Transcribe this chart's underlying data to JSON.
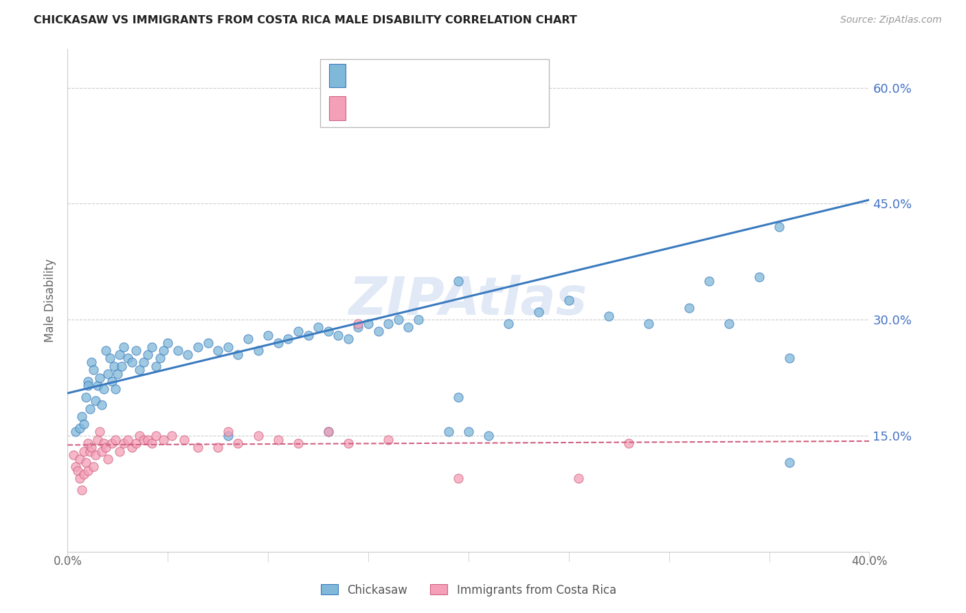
{
  "title": "CHICKASAW VS IMMIGRANTS FROM COSTA RICA MALE DISABILITY CORRELATION CHART",
  "source": "Source: ZipAtlas.com",
  "ylabel": "Male Disability",
  "watermark": "ZIPAtlas",
  "xmin": 0.0,
  "xmax": 0.4,
  "ymin": 0.0,
  "ymax": 0.65,
  "yticks": [
    0.0,
    0.15,
    0.3,
    0.45,
    0.6
  ],
  "xtick_vals": [
    0.0,
    0.05,
    0.1,
    0.15,
    0.2,
    0.25,
    0.3,
    0.35,
    0.4
  ],
  "xtick_labels": [
    "0.0%",
    "",
    "",
    "",
    "",
    "",
    "",
    "",
    "40.0%"
  ],
  "ytick_labels_right": [
    "",
    "15.0%",
    "30.0%",
    "45.0%",
    "60.0%"
  ],
  "color_blue": "#7fb8d8",
  "color_pink": "#f4a0b8",
  "color_blue_line": "#3a7abf",
  "color_pink_line": "#d06080",
  "blue_line_x0": 0.0,
  "blue_line_y0": 0.205,
  "blue_line_x1": 0.4,
  "blue_line_y1": 0.455,
  "pink_line_x0": 0.0,
  "pink_line_y0": 0.138,
  "pink_line_x1": 0.4,
  "pink_line_y1": 0.143,
  "chick_x": [
    0.004,
    0.006,
    0.007,
    0.008,
    0.009,
    0.01,
    0.01,
    0.011,
    0.012,
    0.013,
    0.014,
    0.015,
    0.016,
    0.017,
    0.018,
    0.019,
    0.02,
    0.021,
    0.022,
    0.023,
    0.024,
    0.025,
    0.026,
    0.027,
    0.028,
    0.03,
    0.032,
    0.034,
    0.036,
    0.038,
    0.04,
    0.042,
    0.044,
    0.046,
    0.048,
    0.05,
    0.055,
    0.06,
    0.065,
    0.07,
    0.075,
    0.08,
    0.085,
    0.09,
    0.095,
    0.1,
    0.105,
    0.11,
    0.115,
    0.12,
    0.125,
    0.13,
    0.135,
    0.14,
    0.145,
    0.15,
    0.155,
    0.16,
    0.165,
    0.17,
    0.175,
    0.19,
    0.2,
    0.21,
    0.22,
    0.235,
    0.25,
    0.27,
    0.29,
    0.31,
    0.32,
    0.33,
    0.345,
    0.355,
    0.36,
    0.36,
    0.195,
    0.195,
    0.13,
    0.08
  ],
  "chick_y": [
    0.155,
    0.16,
    0.175,
    0.165,
    0.2,
    0.22,
    0.215,
    0.185,
    0.245,
    0.235,
    0.195,
    0.215,
    0.225,
    0.19,
    0.21,
    0.26,
    0.23,
    0.25,
    0.22,
    0.24,
    0.21,
    0.23,
    0.255,
    0.24,
    0.265,
    0.25,
    0.245,
    0.26,
    0.235,
    0.245,
    0.255,
    0.265,
    0.24,
    0.25,
    0.26,
    0.27,
    0.26,
    0.255,
    0.265,
    0.27,
    0.26,
    0.265,
    0.255,
    0.275,
    0.26,
    0.28,
    0.27,
    0.275,
    0.285,
    0.28,
    0.29,
    0.285,
    0.28,
    0.275,
    0.29,
    0.295,
    0.285,
    0.295,
    0.3,
    0.29,
    0.3,
    0.155,
    0.155,
    0.15,
    0.295,
    0.31,
    0.325,
    0.305,
    0.295,
    0.315,
    0.35,
    0.295,
    0.355,
    0.42,
    0.25,
    0.115,
    0.35,
    0.2,
    0.155,
    0.15
  ],
  "costa_x": [
    0.003,
    0.004,
    0.005,
    0.006,
    0.006,
    0.007,
    0.008,
    0.008,
    0.009,
    0.01,
    0.01,
    0.011,
    0.012,
    0.013,
    0.014,
    0.015,
    0.016,
    0.017,
    0.018,
    0.019,
    0.02,
    0.022,
    0.024,
    0.026,
    0.028,
    0.03,
    0.032,
    0.034,
    0.036,
    0.038,
    0.04,
    0.042,
    0.044,
    0.048,
    0.052,
    0.058,
    0.065,
    0.075,
    0.085,
    0.095,
    0.105,
    0.115,
    0.13,
    0.145,
    0.16,
    0.14,
    0.195,
    0.255,
    0.28,
    0.08
  ],
  "costa_y": [
    0.125,
    0.11,
    0.105,
    0.095,
    0.12,
    0.08,
    0.1,
    0.13,
    0.115,
    0.105,
    0.14,
    0.13,
    0.135,
    0.11,
    0.125,
    0.145,
    0.155,
    0.13,
    0.14,
    0.135,
    0.12,
    0.14,
    0.145,
    0.13,
    0.14,
    0.145,
    0.135,
    0.14,
    0.15,
    0.145,
    0.145,
    0.14,
    0.15,
    0.145,
    0.15,
    0.145,
    0.135,
    0.135,
    0.14,
    0.15,
    0.145,
    0.14,
    0.155,
    0.295,
    0.145,
    0.14,
    0.095,
    0.095,
    0.14,
    0.155
  ]
}
